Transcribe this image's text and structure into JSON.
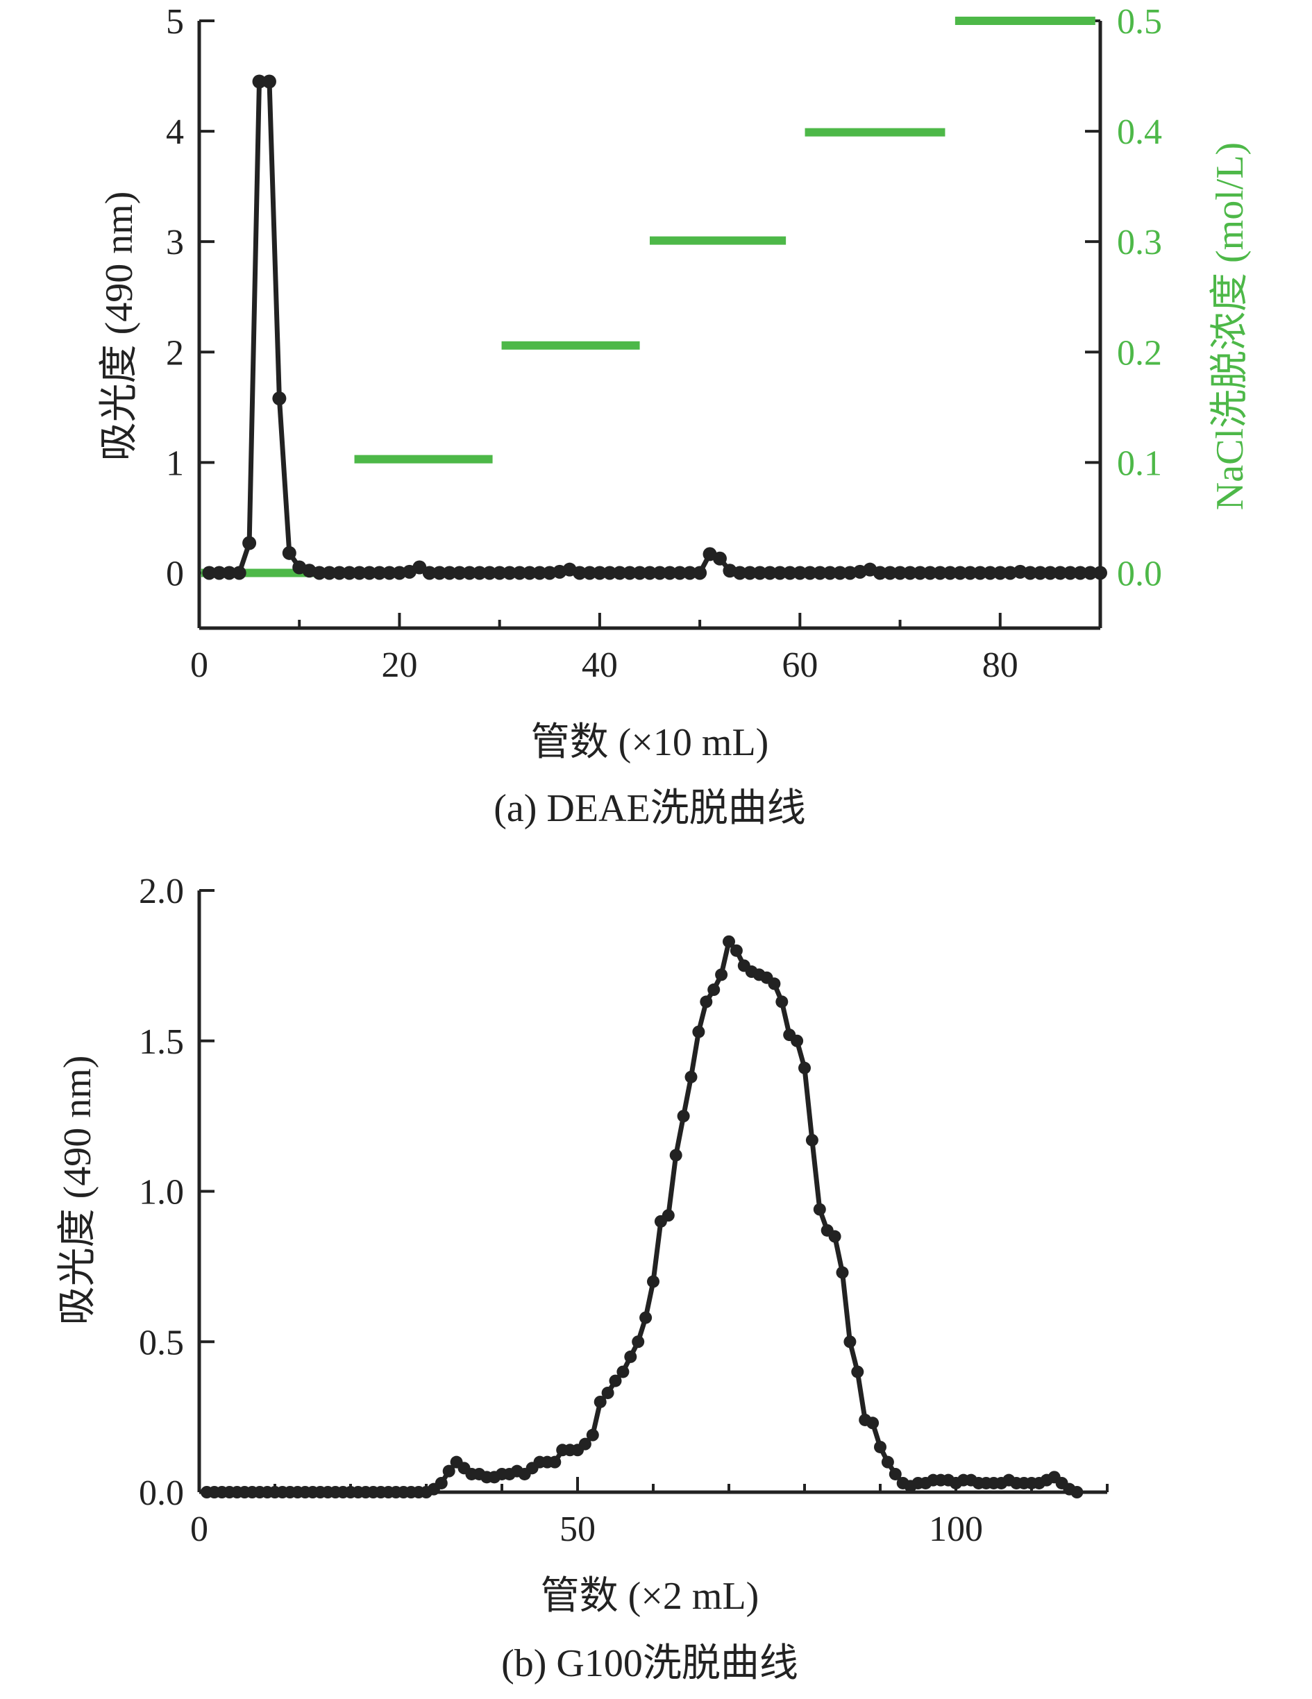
{
  "colors": {
    "absorbance": "#222222",
    "nacl": "#4db848",
    "axis": "#222222"
  },
  "chart_data": [
    {
      "type": "line",
      "caption": "(a) DEAE洗脱曲线",
      "xlabel": "管数 (×10 mL)",
      "ylabel": "吸光度 (490 nm)",
      "y2label": "NaCl洗脱浓度 (mol/L)",
      "xlim": [
        0,
        90
      ],
      "ylim": [
        -0.5,
        5
      ],
      "y2lim": [
        -0.05,
        0.5
      ],
      "xticks": [
        0,
        20,
        40,
        60,
        80
      ],
      "xtick_labels": [
        "0",
        "20",
        "40",
        "60",
        "80"
      ],
      "yticks": [
        0,
        1,
        2,
        3,
        4,
        5
      ],
      "ytick_labels": [
        "0",
        "1",
        "2",
        "3",
        "4",
        "5"
      ],
      "y2ticks": [
        0.0,
        0.1,
        0.2,
        0.3,
        0.4,
        0.5
      ],
      "y2tick_labels": [
        "0.0",
        "0.1",
        "0.2",
        "0.3",
        "0.4",
        "0.5"
      ],
      "series": [
        {
          "axis": "left",
          "style": "line+markers",
          "color": "#222222",
          "x": [
            1,
            2,
            3,
            4,
            5,
            6,
            7,
            8,
            9,
            10,
            11,
            12,
            13,
            14,
            15,
            16,
            17,
            18,
            19,
            20,
            21,
            22,
            23,
            24,
            25,
            26,
            27,
            28,
            29,
            30,
            31,
            32,
            33,
            34,
            35,
            36,
            37,
            38,
            39,
            40,
            41,
            42,
            43,
            44,
            45,
            46,
            47,
            48,
            49,
            50,
            51,
            52,
            53,
            54,
            55,
            56,
            57,
            58,
            59,
            60,
            61,
            62,
            63,
            64,
            65,
            66,
            67,
            68,
            69,
            70,
            71,
            72,
            73,
            74,
            75,
            76,
            77,
            78,
            79,
            80,
            81,
            82,
            83,
            84,
            85,
            86,
            87,
            88,
            89,
            90
          ],
          "y": [
            0,
            0,
            0,
            0,
            0.27,
            4.45,
            4.45,
            1.58,
            0.18,
            0.05,
            0.02,
            0,
            0,
            0,
            0,
            0,
            0,
            0,
            0,
            0,
            0.01,
            0.05,
            0,
            0,
            0,
            0,
            0,
            0,
            0,
            0,
            0,
            0,
            0,
            0,
            0,
            0.01,
            0.03,
            0,
            0,
            0,
            0,
            0,
            0,
            0,
            0,
            0,
            0,
            0,
            0,
            0,
            0.17,
            0.13,
            0.02,
            0,
            0,
            0,
            0,
            0,
            0,
            0,
            0,
            0,
            0,
            0,
            0,
            0.01,
            0.03,
            0,
            0,
            0,
            0,
            0,
            0,
            0,
            0,
            0,
            0,
            0,
            0,
            0,
            0,
            0.01,
            0,
            0,
            0,
            0,
            0,
            0,
            0,
            0
          ]
        },
        {
          "axis": "right",
          "style": "step-segments",
          "color": "#4db848",
          "segments": [
            {
              "x": [
                0.2,
                14
              ],
              "y": 0.0
            },
            {
              "x": [
                15.5,
                29.3
              ],
              "y": 0.103
            },
            {
              "x": [
                30.2,
                44
              ],
              "y": 0.206
            },
            {
              "x": [
                45,
                58.6
              ],
              "y": 0.301
            },
            {
              "x": [
                60.5,
                74.5
              ],
              "y": 0.399
            },
            {
              "x": [
                75.5,
                89.5
              ],
              "y": 0.5
            }
          ]
        }
      ]
    },
    {
      "type": "line",
      "caption": "(b) G100洗脱曲线",
      "xlabel": "管数 (×2 mL)",
      "ylabel": "吸光度 (490 nm)",
      "xlim": [
        0,
        120
      ],
      "ylim": [
        0,
        2.0
      ],
      "xticks": [
        0,
        50,
        100
      ],
      "xtick_labels": [
        "0",
        "50",
        "100"
      ],
      "yticks": [
        0.0,
        0.5,
        1.0,
        1.5,
        2.0
      ],
      "ytick_labels": [
        "0.0",
        "0.5",
        "1.0",
        "1.5",
        "2.0"
      ],
      "series": [
        {
          "axis": "left",
          "style": "line+markers",
          "color": "#222222",
          "x": [
            1,
            2,
            3,
            4,
            5,
            6,
            7,
            8,
            9,
            10,
            11,
            12,
            13,
            14,
            15,
            16,
            17,
            18,
            19,
            20,
            21,
            22,
            23,
            24,
            25,
            26,
            27,
            28,
            29,
            30,
            31,
            32,
            33,
            34,
            35,
            36,
            37,
            38,
            39,
            40,
            41,
            42,
            43,
            44,
            45,
            46,
            47,
            48,
            49,
            50,
            51,
            52,
            53,
            54,
            55,
            56,
            57,
            58,
            59,
            60,
            61,
            62,
            63,
            64,
            65,
            66,
            67,
            68,
            69,
            70,
            71,
            72,
            73,
            74,
            75,
            76,
            77,
            78,
            79,
            80,
            81,
            82,
            83,
            84,
            85,
            86,
            87,
            88,
            89,
            90,
            91,
            92,
            93,
            94,
            95,
            96,
            97,
            98,
            99,
            100,
            101,
            102,
            103,
            104,
            105,
            106,
            107,
            108,
            109,
            110,
            111,
            112,
            113,
            114,
            115,
            116
          ],
          "y": [
            0,
            0,
            0,
            0,
            0,
            0,
            0,
            0,
            0,
            0,
            0,
            0,
            0,
            0,
            0,
            0,
            0,
            0,
            0,
            0,
            0,
            0,
            0,
            0,
            0,
            0,
            0,
            0,
            0,
            0,
            0.01,
            0.03,
            0.07,
            0.1,
            0.08,
            0.06,
            0.06,
            0.05,
            0.05,
            0.06,
            0.06,
            0.07,
            0.06,
            0.08,
            0.1,
            0.1,
            0.1,
            0.14,
            0.14,
            0.14,
            0.16,
            0.19,
            0.3,
            0.33,
            0.37,
            0.4,
            0.45,
            0.5,
            0.58,
            0.7,
            0.9,
            0.92,
            1.12,
            1.25,
            1.38,
            1.53,
            1.63,
            1.67,
            1.72,
            1.83,
            1.8,
            1.75,
            1.73,
            1.72,
            1.71,
            1.69,
            1.63,
            1.52,
            1.5,
            1.41,
            1.17,
            0.94,
            0.87,
            0.85,
            0.73,
            0.5,
            0.4,
            0.24,
            0.23,
            0.15,
            0.1,
            0.06,
            0.03,
            0.02,
            0.03,
            0.03,
            0.04,
            0.04,
            0.04,
            0.03,
            0.04,
            0.04,
            0.03,
            0.03,
            0.03,
            0.03,
            0.04,
            0.03,
            0.03,
            0.03,
            0.03,
            0.04,
            0.05,
            0.03,
            0.01,
            0
          ]
        }
      ]
    }
  ]
}
